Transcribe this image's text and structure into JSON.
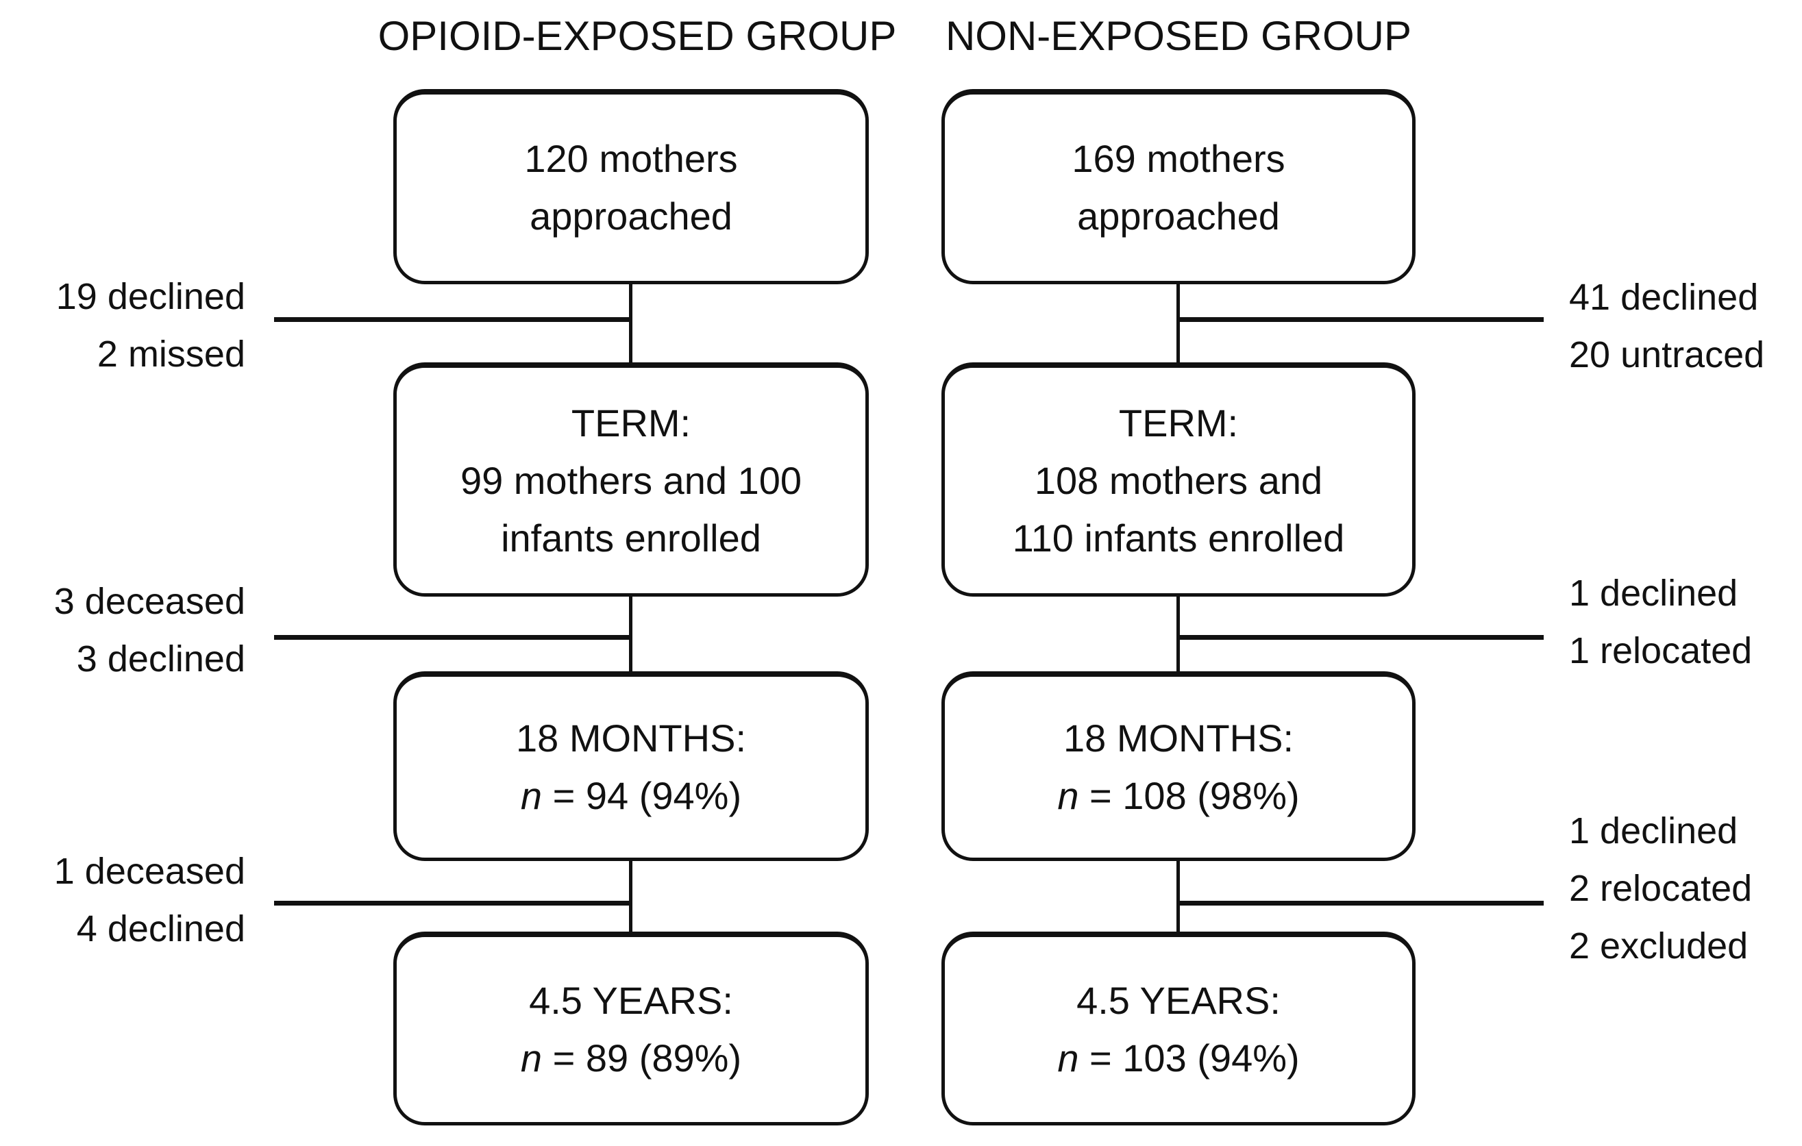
{
  "colors": {
    "ink": "#111111",
    "paper": "#ffffff"
  },
  "groups": [
    {
      "header": "OPIOID-EXPOSED GROUP",
      "boxes": {
        "approached": {
          "line1": "120 mothers",
          "line2": "approached"
        },
        "term": {
          "line1": "TERM:",
          "line2": "99 mothers and 100",
          "line3": "infants enrolled"
        },
        "months18": {
          "line1": "18 MONTHS:",
          "n": "n",
          "stat": " = 94 (94%)"
        },
        "years45": {
          "line1": "4.5 YEARS:",
          "n": "n",
          "stat": " = 89 (89%)"
        }
      },
      "dropouts": [
        {
          "lines": [
            "19 declined",
            "2 missed"
          ]
        },
        {
          "lines": [
            "3 deceased",
            "3 declined"
          ]
        },
        {
          "lines": [
            "1 deceased",
            "4 declined"
          ]
        }
      ]
    },
    {
      "header": "NON-EXPOSED GROUP",
      "boxes": {
        "approached": {
          "line1": "169 mothers",
          "line2": "approached"
        },
        "term": {
          "line1": "TERM:",
          "line2": "108 mothers and",
          "line3": "110 infants enrolled"
        },
        "months18": {
          "line1": "18 MONTHS:",
          "n": "n",
          "stat": " = 108 (98%)"
        },
        "years45": {
          "line1": "4.5 YEARS:",
          "n": "n",
          "stat": " = 103 (94%)"
        }
      },
      "dropouts": [
        {
          "lines": [
            "41 declined",
            "20 untraced"
          ]
        },
        {
          "lines": [
            "1 declined",
            "1 relocated"
          ]
        },
        {
          "lines": [
            "1 declined",
            "2 relocated",
            "2 excluded"
          ]
        }
      ]
    }
  ]
}
